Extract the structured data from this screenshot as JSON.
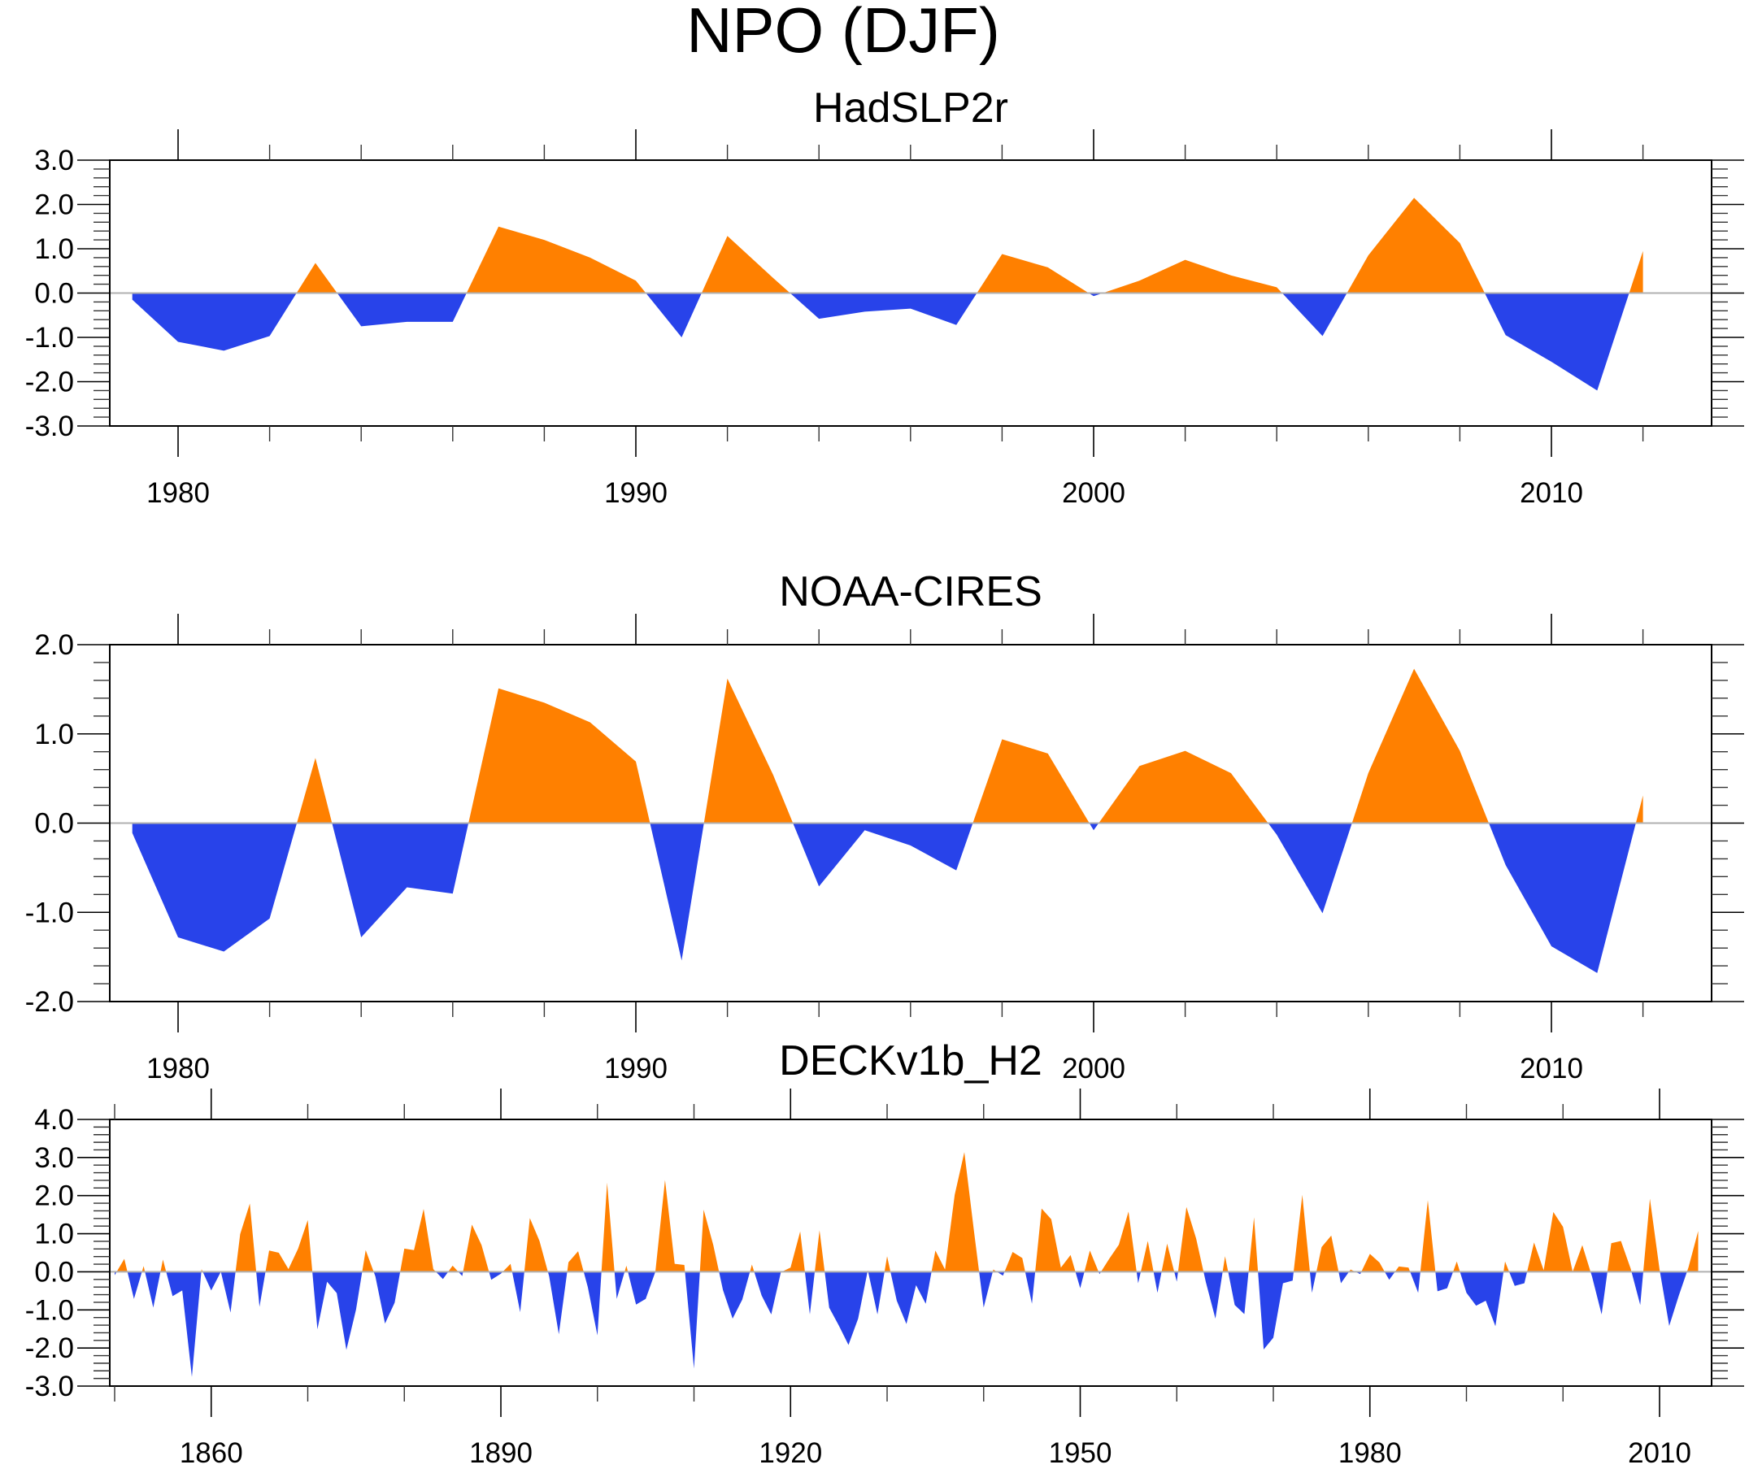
{
  "title": "NPO (DJF)",
  "colors": {
    "positive": "#ff8000",
    "negative": "#2843ea",
    "zero_line": "#b0b0b0",
    "axis": "#000000"
  },
  "chart_data": [
    {
      "type": "area",
      "title": "HadSLP2r",
      "xlabel": "",
      "ylabel": "",
      "xlim": [
        1977.2,
        2012.2
      ],
      "ylim": [
        -3.0,
        3.0
      ],
      "x_tick_labels": [
        "1980",
        "1990",
        "2000",
        "2010"
      ],
      "x_major_ticks": [
        1980,
        1990,
        2000,
        2010
      ],
      "x_minor_step": 2,
      "y_tick_labels": [
        "3.0",
        "2.0",
        "1.0",
        "0.0",
        "-1.0",
        "-2.0",
        "-3.0"
      ],
      "y_ticks": [
        3,
        2,
        1,
        0,
        -1,
        -2,
        -3
      ],
      "y_minor_step": 0.2,
      "fill": "above zero orange, below zero blue",
      "x": [
        1979,
        1980,
        1981,
        1982,
        1983,
        1984,
        1985,
        1986,
        1987,
        1988,
        1989,
        1990,
        1991,
        1992,
        1993,
        1994,
        1995,
        1996,
        1997,
        1998,
        1999,
        2000,
        2001,
        2002,
        2003,
        2004,
        2005,
        2006,
        2007,
        2008,
        2009,
        2010,
        2011,
        2012
      ],
      "values": [
        -0.15,
        -1.1,
        -1.3,
        -0.97,
        0.68,
        -0.75,
        -0.65,
        -0.65,
        1.5,
        1.2,
        0.8,
        0.28,
        -1.0,
        1.29,
        0.34,
        -0.58,
        -0.42,
        -0.35,
        -0.72,
        0.88,
        0.58,
        -0.07,
        0.28,
        0.75,
        0.4,
        0.13,
        -0.97,
        0.85,
        2.15,
        1.13,
        -0.95,
        -1.55,
        -2.2,
        0.95
      ]
    },
    {
      "type": "area",
      "title": "NOAA-CIRES",
      "xlabel": "",
      "ylabel": "",
      "xlim": [
        1977.2,
        2012.2
      ],
      "ylim": [
        -2.0,
        2.0
      ],
      "x_tick_labels": [
        "1980",
        "1990",
        "2000",
        "2010"
      ],
      "x_major_ticks": [
        1980,
        1990,
        2000,
        2010
      ],
      "x_minor_step": 2,
      "y_tick_labels": [
        "2.0",
        "1.0",
        "0.0",
        "-1.0",
        "-2.0"
      ],
      "y_ticks": [
        2,
        1,
        0,
        -1,
        -2
      ],
      "y_minor_step": 0.2,
      "fill": "above zero orange, below zero blue",
      "x": [
        1979,
        1980,
        1981,
        1982,
        1983,
        1984,
        1985,
        1986,
        1987,
        1988,
        1989,
        1990,
        1991,
        1992,
        1993,
        1994,
        1995,
        1996,
        1997,
        1998,
        1999,
        2000,
        2001,
        2002,
        2003,
        2004,
        2005,
        2006,
        2007,
        2008,
        2009,
        2010,
        2011,
        2012
      ],
      "values": [
        -0.11,
        -1.28,
        -1.44,
        -1.07,
        0.73,
        -1.28,
        -0.72,
        -0.79,
        1.51,
        1.35,
        1.13,
        0.69,
        -1.54,
        1.62,
        0.54,
        -0.71,
        -0.08,
        -0.25,
        -0.53,
        0.94,
        0.78,
        -0.08,
        0.64,
        0.81,
        0.56,
        -0.13,
        -1.01,
        0.56,
        1.73,
        0.81,
        -0.47,
        -1.38,
        -1.68,
        0.31
      ]
    },
    {
      "type": "area",
      "title": "DECKv1b_H2",
      "xlabel": "",
      "ylabel": "",
      "xlim": [
        1849.5,
        2015.4
      ],
      "ylim": [
        -3.0,
        4.0
      ],
      "x_tick_labels": [
        "1860",
        "1890",
        "1920",
        "1950",
        "1980",
        "2010"
      ],
      "x_major_ticks": [
        1860,
        1890,
        1920,
        1950,
        1980,
        2010
      ],
      "x_minor_step": 10,
      "y_tick_labels": [
        "4.0",
        "3.0",
        "2.0",
        "1.0",
        "0.0",
        "-1.0",
        "-2.0",
        "-3.0"
      ],
      "y_ticks": [
        4,
        3,
        2,
        1,
        0,
        -1,
        -2,
        -3
      ],
      "y_minor_step": 0.2,
      "fill": "above zero orange, below zero blue",
      "x_start": 1850,
      "x_end": 2014,
      "values": [
        -0.09,
        0.34,
        -0.71,
        0.15,
        -0.94,
        0.32,
        -0.64,
        -0.49,
        -2.76,
        0.07,
        -0.49,
        0.0,
        -1.07,
        0.99,
        1.79,
        -0.92,
        0.56,
        0.5,
        0.07,
        0.61,
        1.36,
        -1.51,
        -0.26,
        -0.56,
        -2.05,
        -0.99,
        0.57,
        -0.12,
        -1.36,
        -0.81,
        0.61,
        0.57,
        1.65,
        0.07,
        -0.19,
        0.16,
        -0.11,
        1.24,
        0.7,
        -0.21,
        -0.05,
        0.21,
        -1.06,
        1.41,
        0.81,
        -0.12,
        -1.64,
        0.25,
        0.54,
        -0.4,
        -1.67,
        2.34,
        -0.71,
        0.16,
        -0.86,
        -0.71,
        0.0,
        2.41,
        0.21,
        0.18,
        -2.54,
        1.63,
        0.7,
        -0.48,
        -1.23,
        -0.73,
        0.19,
        -0.62,
        -1.12,
        -0.01,
        0.11,
        1.06,
        -1.12,
        1.09,
        -0.94,
        -1.41,
        -1.92,
        -1.23,
        0.04,
        -1.12,
        0.41,
        -0.76,
        -1.37,
        -0.35,
        -0.84,
        0.56,
        0.06,
        2.02,
        3.14,
        1.06,
        -0.94,
        0.06,
        -0.1,
        0.52,
        0.36,
        -0.84,
        1.66,
        1.38,
        0.11,
        0.44,
        -0.43,
        0.56,
        -0.06,
        0.34,
        0.71,
        1.58,
        -0.3,
        0.81,
        -0.55,
        0.74,
        -0.26,
        1.7,
        0.88,
        -0.26,
        -1.23,
        0.41,
        -0.87,
        -1.11,
        1.43,
        -2.04,
        -1.73,
        -0.3,
        -0.23,
        2.02,
        -0.55,
        0.65,
        0.95,
        -0.3,
        0.06,
        -0.06,
        0.47,
        0.24,
        -0.21,
        0.14,
        0.11,
        -0.55,
        1.88,
        -0.51,
        -0.43,
        0.27,
        -0.55,
        -0.89,
        -0.76,
        -1.43,
        0.27,
        -0.37,
        -0.3,
        0.77,
        0.04,
        1.57,
        1.18,
        0.0,
        0.7,
        -0.12,
        -1.12,
        0.75,
        0.81,
        0.09,
        -0.87,
        1.92,
        0.06,
        -1.42,
        -0.62,
        0.12,
        1.07
      ]
    }
  ]
}
